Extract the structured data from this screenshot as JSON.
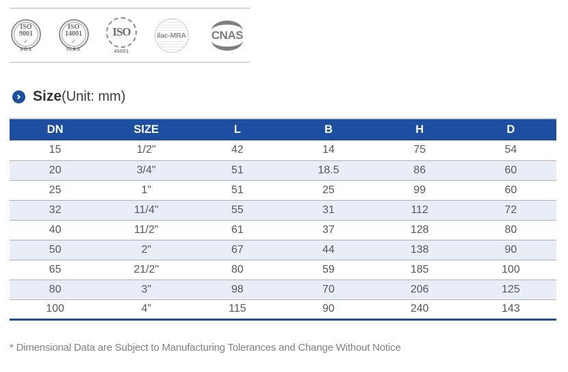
{
  "certifications": {
    "iso9001": {
      "line1": "ISO",
      "line2": "9001",
      "check": "✓",
      "sub": "SGS"
    },
    "iso14001": {
      "line1": "ISO",
      "line2": "14001",
      "check": "✓",
      "sub": "ICAS"
    },
    "iso45001": {
      "text": "ISO",
      "sub": "45001"
    },
    "ilac": {
      "text": "ilac-MRA"
    },
    "cnas": {
      "text": "CNAS"
    }
  },
  "heading": {
    "title": "Size",
    "unit": "(Unit: mm)"
  },
  "table": {
    "columns": [
      "DN",
      "SIZE",
      "L",
      "B",
      "H",
      "D"
    ],
    "rows": [
      [
        "15",
        "1/2\"",
        "42",
        "14",
        "75",
        "54"
      ],
      [
        "20",
        "3/4\"",
        "51",
        "18.5",
        "86",
        "60"
      ],
      [
        "25",
        "1\"",
        "51",
        "25",
        "99",
        "60"
      ],
      [
        "32",
        "11/4\"",
        "55",
        "31",
        "112",
        "72"
      ],
      [
        "40",
        "11/2\"",
        "61",
        "37",
        "128",
        "80"
      ],
      [
        "50",
        "2\"",
        "67",
        "44",
        "138",
        "90"
      ],
      [
        "65",
        "21/2\"",
        "80",
        "59",
        "185",
        "100"
      ],
      [
        "80",
        "3\"",
        "98",
        "70",
        "206",
        "125"
      ],
      [
        "100",
        "4\"",
        "115",
        "90",
        "240",
        "143"
      ]
    ]
  },
  "footnote": "* Dimensional Data are Subject to Manufacturing Tolerances and Change Without Notice",
  "colors": {
    "header_bg": "#1d4fa0",
    "row_alt": "#e9eef6",
    "accent_blue": "#1d4fa0",
    "row_separator": "#a9b0bf"
  }
}
